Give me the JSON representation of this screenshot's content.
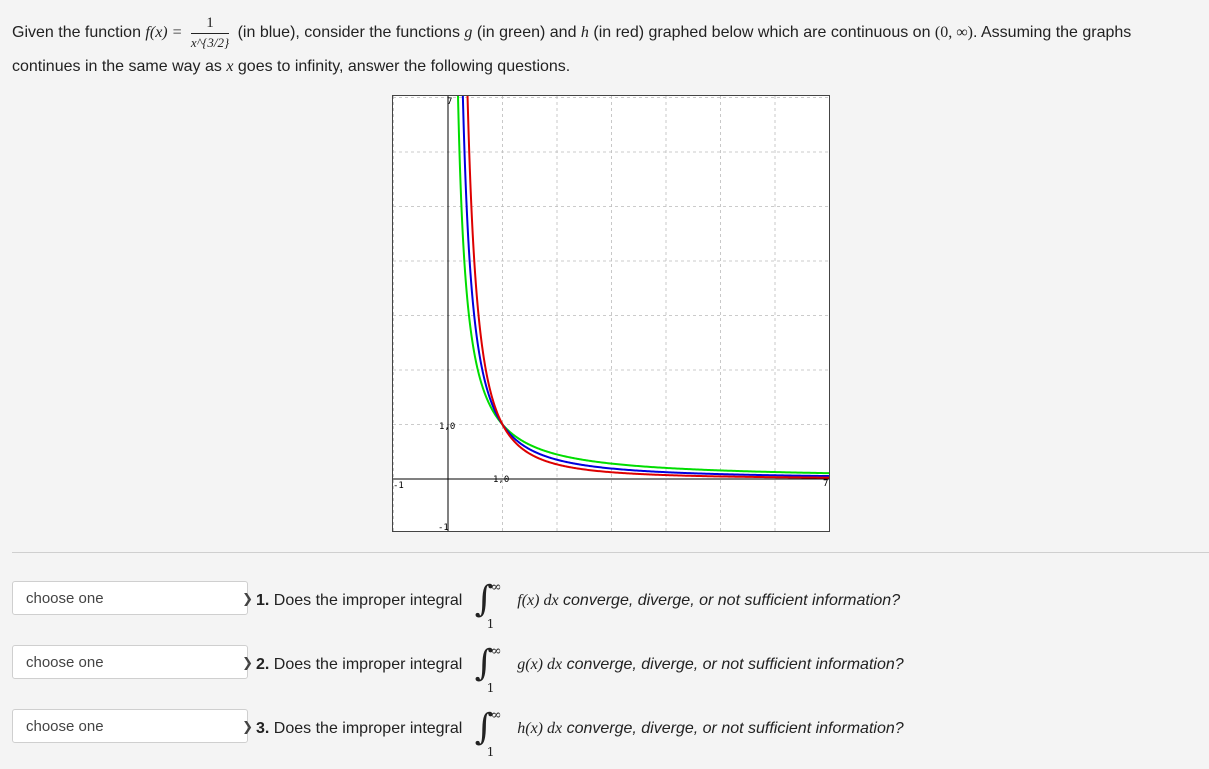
{
  "intro": {
    "p1": "Given the function",
    "f_lhs": "f(x) =",
    "frac_num": "1",
    "frac_den": "x^{3/2}",
    "p2": "(in blue), consider the functions",
    "g": "g",
    "p3": "(in green) and",
    "h": "h",
    "p4": "(in red) graphed below which are continuous on",
    "interval": "(0, ∞)",
    "p5": ". Assuming the graphs continues in the same way as",
    "x": "x",
    "p6": "goes to infinity, answer the following questions."
  },
  "graph": {
    "tick_labels": {
      "y_top": "7",
      "x_left": "-1",
      "y_one": "1,0",
      "x_one": "1,0",
      "y_bottom": "-1",
      "x_right": "7"
    },
    "colors": {
      "f": "#0000dd",
      "g": "#00dd00",
      "h": "#dd0000",
      "grid": "#bbbbbb",
      "axis": "#000000"
    }
  },
  "questions": [
    {
      "select_value": "choose one",
      "number": "1.",
      "lead": "Does the improper integral",
      "upper": "∞",
      "lower": "1",
      "expr": "f(x) dx",
      "tail": "converge, diverge, or not sufficient information?"
    },
    {
      "select_value": "choose one",
      "number": "2.",
      "lead": "Does the improper integral",
      "upper": "∞",
      "lower": "1",
      "expr": "g(x) dx",
      "tail": "converge, diverge, or not sufficient information?"
    },
    {
      "select_value": "choose one",
      "number": "3.",
      "lead": "Does the improper integral",
      "upper": "∞",
      "lower": "1",
      "expr": "h(x) dx",
      "tail": "converge, diverge, or not sufficient information?"
    }
  ],
  "icons": {
    "select": "chevron-down-icon",
    "integral": "integral-sign"
  }
}
